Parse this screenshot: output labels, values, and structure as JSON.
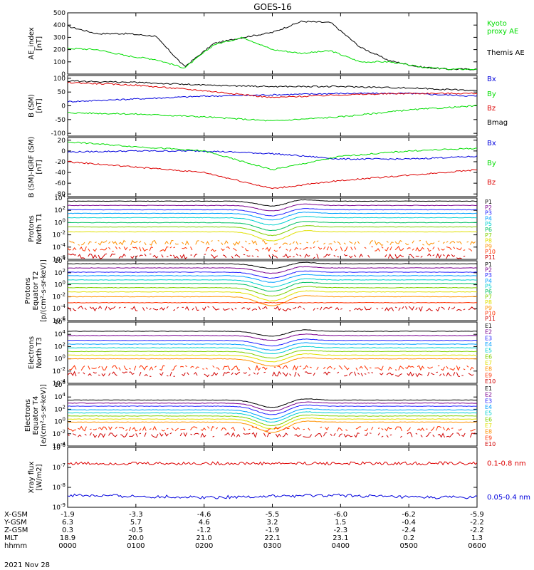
{
  "title": "GOES-16",
  "date_label": "2021 Nov 28",
  "colors": {
    "black": "#000000",
    "green": "#00dd00",
    "blue": "#0000dd",
    "red": "#dd0000",
    "energy": [
      "#000000",
      "#7a0090",
      "#2020ff",
      "#00a0ff",
      "#00d0d0",
      "#00c060",
      "#80d000",
      "#e0e000",
      "#ff9000",
      "#ff3000",
      "#d00000"
    ]
  },
  "x_axis": {
    "hhmm": [
      "0000",
      "0100",
      "0200",
      "0300",
      "0400",
      "0500",
      "0600"
    ],
    "rows": [
      {
        "label": "X-GSM",
        "values": [
          "-1.9",
          "-3.3",
          "-4.6",
          "-5.5",
          "-6.0",
          "-6.2",
          "-5.9"
        ]
      },
      {
        "label": "Y-GSM",
        "values": [
          "6.3",
          "5.7",
          "4.6",
          "3.2",
          "1.5",
          "-0.4",
          "-2.2"
        ]
      },
      {
        "label": "Z-GSM",
        "values": [
          "0.3",
          "-0.5",
          "-1.2",
          "-1.9",
          "-2.3",
          "-2.4",
          "-2.2"
        ]
      },
      {
        "label": "MLT",
        "values": [
          "18.9",
          "20.0",
          "21.0",
          "22.1",
          "23.1",
          "0.2",
          "1.3"
        ]
      },
      {
        "label": "hhmm",
        "values": [
          "0000",
          "0100",
          "0200",
          "0300",
          "0400",
          "0500",
          "0600"
        ]
      }
    ]
  },
  "chart_data": [
    {
      "type": "line",
      "ylabel": "AE_index\n[nT]",
      "ylim": [
        0,
        500
      ],
      "yticks": [
        "0",
        "100",
        "200",
        "300",
        "400",
        "500"
      ],
      "x": [
        "00:00",
        "00:30",
        "01:00",
        "01:30",
        "02:00",
        "02:15",
        "02:30",
        "03:00",
        "03:15",
        "03:30",
        "04:00",
        "04:30",
        "05:00",
        "05:30",
        "06:00"
      ],
      "series": [
        {
          "name": "Themis AE",
          "values": [
            390,
            330,
            330,
            310,
            60,
            250,
            300,
            340,
            430,
            420,
            220,
            110,
            60,
            40,
            40
          ],
          "color": "#000000"
        },
        {
          "name": "Kyoto\nproxy AE",
          "values": [
            210,
            200,
            150,
            120,
            50,
            240,
            300,
            200,
            170,
            190,
            100,
            100,
            60,
            40,
            40
          ],
          "color": "#00dd00"
        }
      ]
    },
    {
      "type": "line",
      "ylabel": "B (SM)\n[nT]",
      "ylim": [
        -110,
        110
      ],
      "yticks": [
        "-100",
        "-50",
        "0",
        "50",
        "100"
      ],
      "x": [
        "00:00",
        "01:00",
        "02:00",
        "03:00",
        "04:00",
        "05:00",
        "06:00"
      ],
      "series": [
        {
          "name": "Bx",
          "values": [
            15,
            25,
            35,
            40,
            45,
            45,
            35
          ],
          "color": "#0000dd"
        },
        {
          "name": "By",
          "values": [
            -25,
            -30,
            -40,
            -55,
            -40,
            -15,
            0
          ],
          "color": "#00dd00"
        },
        {
          "name": "Bz",
          "values": [
            85,
            75,
            55,
            30,
            40,
            45,
            45
          ],
          "color": "#dd0000"
        },
        {
          "name": "Bmag",
          "values": [
            90,
            85,
            75,
            70,
            70,
            65,
            55
          ],
          "color": "#000000"
        }
      ]
    },
    {
      "type": "line",
      "ylabel": "B (SM)-IGRF (SM)\n[nT]",
      "ylim": [
        -85,
        25
      ],
      "yticks": [
        "-80",
        "-60",
        "-40",
        "-20",
        "0",
        "20"
      ],
      "x": [
        "00:00",
        "01:00",
        "02:00",
        "03:00",
        "04:00",
        "05:00",
        "06:00"
      ],
      "series": [
        {
          "name": "Bx",
          "values": [
            -2,
            0,
            0,
            -5,
            -15,
            -15,
            -10
          ],
          "color": "#0000dd"
        },
        {
          "name": "By",
          "values": [
            17,
            8,
            0,
            -35,
            -10,
            0,
            5
          ],
          "color": "#00dd00"
        },
        {
          "name": "Bz",
          "values": [
            -20,
            -30,
            -40,
            -70,
            -55,
            -45,
            -35
          ],
          "color": "#dd0000"
        }
      ]
    },
    {
      "type": "line",
      "ylabel": "Protons\nNorth T1",
      "log": true,
      "ylim": [
        -6,
        4
      ],
      "yticks": [
        "10^4",
        "10^2",
        "10^0",
        "10^-2",
        "10^-4",
        "10^-6"
      ],
      "x": [
        "00:00",
        "01:00",
        "02:00",
        "03:00",
        "04:00",
        "05:00",
        "06:00"
      ],
      "labels": [
        "P1",
        "P2",
        "P3",
        "P4",
        "P5",
        "P6",
        "P7",
        "P8",
        "P9",
        "P10",
        "P11"
      ],
      "base": [
        3.5,
        2.8,
        2.1,
        1.5,
        0.8,
        0.0,
        -0.7,
        -1.5,
        -3.3,
        -4.3,
        -5.5
      ],
      "dip": [
        -0.8,
        -0.9,
        -1.0,
        -1.1,
        -1.2,
        -1.3,
        -1.4,
        -1.5,
        0,
        0,
        0
      ]
    },
    {
      "type": "line",
      "ylabel": "Protons\nEquator T2\n[p/(cm²-s-sr-keV)]",
      "log": true,
      "ylim": [
        -6,
        4
      ],
      "yticks": [
        "10^4",
        "10^2",
        "10^0",
        "10^-2",
        "10^-4",
        "10^-6"
      ],
      "x": [
        "00:00",
        "01:00",
        "02:00",
        "03:00",
        "04:00",
        "05:00",
        "06:00"
      ],
      "labels": [
        "P1",
        "P2",
        "P3",
        "P4",
        "P5",
        "P6",
        "P7",
        "P8",
        "P9",
        "P10",
        "P11"
      ],
      "base": [
        3.5,
        2.8,
        2.1,
        1.5,
        0.8,
        0.2,
        -0.5,
        -1.2,
        -2.0,
        -3.0,
        -4.0
      ],
      "dip": [
        -0.8,
        -0.9,
        -1.0,
        -1.1,
        -1.2,
        -1.3,
        -1.4,
        -1.5,
        -1.5,
        0,
        0
      ]
    },
    {
      "type": "line",
      "ylabel": "Electrons\nNorth T3",
      "log": true,
      "ylim": [
        -4,
        6
      ],
      "yticks": [
        "10^6",
        "10^4",
        "10^2",
        "10^0",
        "10^-2",
        "10^-4"
      ],
      "x": [
        "00:00",
        "01:00",
        "02:00",
        "03:00",
        "04:00",
        "05:00",
        "06:00"
      ],
      "labels": [
        "E1",
        "E2",
        "E3",
        "E4",
        "E5",
        "E6",
        "E7",
        "E8",
        "E9",
        "E10"
      ],
      "base": [
        4.5,
        3.8,
        3.0,
        2.4,
        1.8,
        1.2,
        0.6,
        0.0,
        -1.5,
        -2.5
      ],
      "dip": [
        -0.8,
        -0.8,
        -0.9,
        -1.0,
        -1.0,
        -1.1,
        -1.1,
        -1.2,
        0,
        0
      ]
    },
    {
      "type": "line",
      "ylabel": "Electrons\nEquator T4\n[e/(cm²-s-sr-keV)]",
      "log": true,
      "ylim": [
        -4,
        6
      ],
      "yticks": [
        "10^6",
        "10^4",
        "10^2",
        "10^0",
        "10^-2",
        "10^-4"
      ],
      "x": [
        "00:00",
        "01:00",
        "02:00",
        "03:00",
        "04:00",
        "05:00",
        "06:00"
      ],
      "labels": [
        "E1",
        "E2",
        "E3",
        "E4",
        "E5",
        "E6",
        "E7",
        "E8",
        "E9",
        "E10"
      ],
      "base": [
        3.5,
        3.0,
        2.5,
        1.9,
        1.4,
        0.9,
        0.4,
        -0.1,
        -1.2,
        -2.2
      ],
      "dip": [
        -1.2,
        -1.3,
        -1.4,
        -1.5,
        -1.5,
        -1.6,
        -1.6,
        -1.7,
        0,
        0
      ]
    },
    {
      "type": "line",
      "ylabel": "Xray flux\n[W/m2]",
      "log": true,
      "ylim": [
        -9,
        -6
      ],
      "yticks": [
        "10^-6",
        "10^-7",
        "10^-8",
        "10^-9"
      ],
      "x": [
        "00:00",
        "01:00",
        "02:00",
        "03:00",
        "04:00",
        "05:00",
        "06:00"
      ],
      "series": [
        {
          "name": "0.1-0.8 nm",
          "values": [
            -6.8,
            -6.8,
            -6.8,
            -6.8,
            -6.8,
            -6.8,
            -6.8
          ],
          "color": "#dd0000"
        },
        {
          "name": "0.05-0.4 nm",
          "values": [
            -8.4,
            -8.45,
            -8.5,
            -8.45,
            -8.4,
            -8.5,
            -8.5
          ],
          "color": "#0000dd"
        }
      ]
    }
  ]
}
